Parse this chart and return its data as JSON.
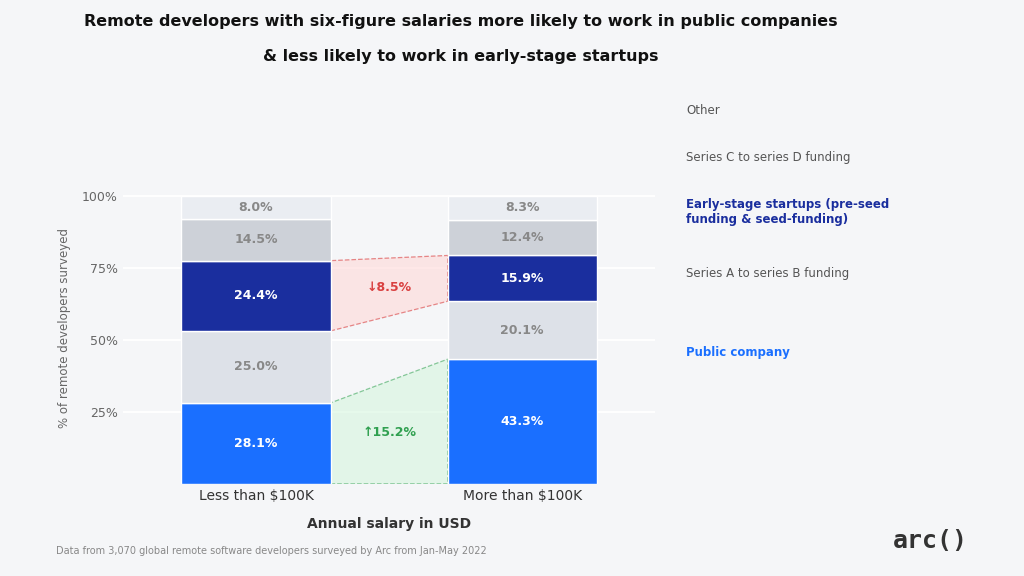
{
  "title_line1": "Remote developers with six-figure salaries more likely to work in public companies",
  "title_line2": "& less likely to work in early-stage startups",
  "xlabel": "Annual salary in USD",
  "ylabel": "% of remote developers surveyed",
  "footnote": "Data from 3,070 global remote software developers surveyed by Arc from Jan-May 2022",
  "categories": [
    "Less than $100K",
    "More than $100K"
  ],
  "segments": [
    {
      "label": "Public company",
      "values": [
        28.1,
        43.3
      ],
      "color": "#1a6fff",
      "text_color": "#ffffff",
      "bold": true,
      "label_color": "#1a6fff"
    },
    {
      "label": "Series A to series B funding",
      "values": [
        25.0,
        20.1
      ],
      "color": "#dde1e8",
      "text_color": "#888888",
      "bold": false,
      "label_color": "#555555"
    },
    {
      "label": "Early-stage startups (pre-seed\nfunding & seed-funding)",
      "values": [
        24.4,
        15.9
      ],
      "color": "#1a2e9e",
      "text_color": "#ffffff",
      "bold": true,
      "label_color": "#1a2e9e"
    },
    {
      "label": "Series C to series D funding",
      "values": [
        14.5,
        12.4
      ],
      "color": "#cdd1d8",
      "text_color": "#888888",
      "bold": false,
      "label_color": "#555555"
    },
    {
      "label": "Other",
      "values": [
        8.0,
        8.3
      ],
      "color": "#eaedf2",
      "text_color": "#888888",
      "bold": false,
      "label_color": "#555555"
    }
  ],
  "ytick_values": [
    25,
    50,
    75,
    100
  ],
  "ytick_labels": [
    "25%",
    "50%",
    "75%",
    "100%"
  ],
  "plot_bg": "#ffffff",
  "fig_bg": "#f5f6f8",
  "annotation_decrease": "↓8.5%",
  "annotation_increase": "↑15.2%",
  "annotation_decrease_color": "#d94040",
  "annotation_increase_color": "#30a050",
  "arc_logo": "arc()",
  "title_bg": "#ffffff"
}
